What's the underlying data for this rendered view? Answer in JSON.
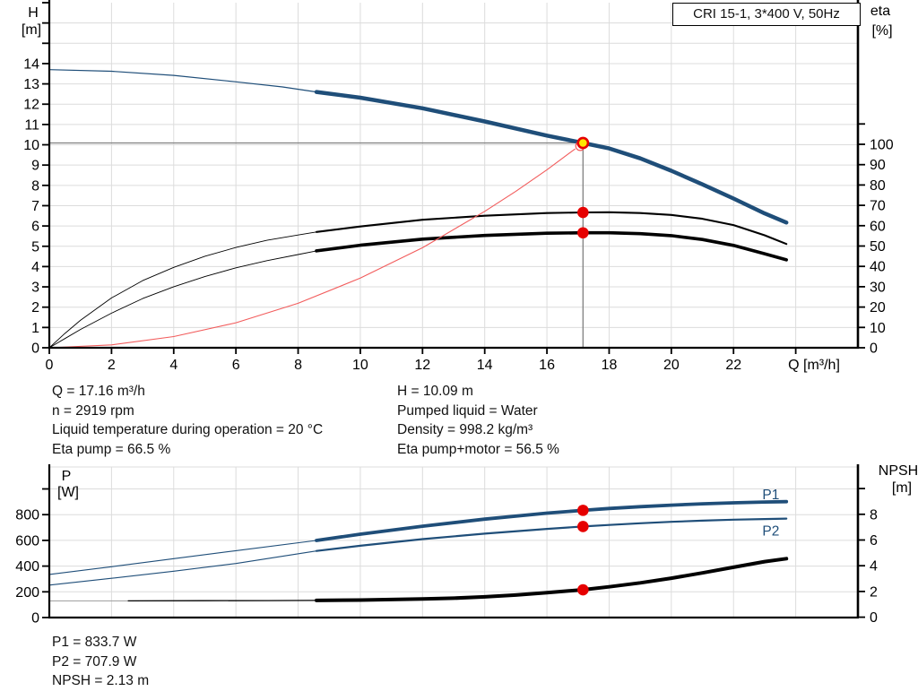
{
  "title_box": "CRI 15-1, 3*400 V, 50Hz",
  "colors": {
    "curve_blue": "#1f4e79",
    "curve_black": "#000000",
    "system_curve_red": "#f25c5c",
    "marker_red": "#e60000",
    "marker_yellow": "#ffe600",
    "grid": "#dcdcdc",
    "crosshair": "#808080",
    "npsh_gray_segment": "#a6a6a6",
    "axis": "#000000"
  },
  "info_left": [
    "Q = 17.16 m³/h",
    "n = 2919 rpm",
    "Liquid temperature during operation = 20 °C",
    "Eta pump = 66.5 %"
  ],
  "info_right": [
    "H = 10.09 m",
    "Pumped liquid = Water",
    "Density = 998.2 kg/m³",
    "Eta pump+motor = 56.5 %"
  ],
  "info_bottom": [
    "P1 = 833.7 W",
    "P2 = 707.9 W",
    "NPSH = 2.13 m"
  ],
  "chart_data": [
    {
      "id": "qh-eta-chart",
      "type": "line",
      "title": "CRI 15-1, 3*400 V, 50Hz",
      "x_axis": {
        "label": "Q [m³/h]",
        "min": 0,
        "max": 26,
        "tick_step": 2,
        "last_labeled_tick": 22
      },
      "y_left_axis": {
        "label": "H",
        "unit": "[m]",
        "min": 0,
        "max": 17,
        "tick_step": 1,
        "last_labeled_tick": 14
      },
      "y_right_axis": {
        "label": "eta",
        "unit": "[%]",
        "min": 0,
        "max": 110,
        "tick_step": 10,
        "last_labeled_tick": 100
      },
      "grid": true,
      "duty_point": {
        "q": 17.16,
        "h": 10.09,
        "eta_pump": 66.5,
        "eta_pump_motor": 56.5
      },
      "series": [
        {
          "name": "head-curve",
          "axis": "left",
          "segments": [
            {
              "color": "#1f4e79",
              "width": 1.2,
              "points": [
                [
                  0,
                  13.7
                ],
                [
                  2,
                  13.62
                ],
                [
                  4,
                  13.42
                ],
                [
                  6,
                  13.1
                ],
                [
                  7.5,
                  12.85
                ],
                [
                  8.59,
                  12.6
                ]
              ]
            },
            {
              "color": "#1f4e79",
              "width": 4.5,
              "points": [
                [
                  8.59,
                  12.6
                ],
                [
                  10,
                  12.32
                ],
                [
                  12,
                  11.8
                ],
                [
                  14,
                  11.15
                ],
                [
                  16,
                  10.45
                ],
                [
                  17.16,
                  10.09
                ],
                [
                  18,
                  9.82
                ],
                [
                  19,
                  9.33
                ],
                [
                  20,
                  8.72
                ],
                [
                  21,
                  8.05
                ],
                [
                  22,
                  7.35
                ],
                [
                  23,
                  6.62
                ],
                [
                  23.7,
                  6.17
                ]
              ]
            }
          ]
        },
        {
          "name": "eta-pump-curve",
          "axis": "right",
          "segments": [
            {
              "color": "#000000",
              "width": 0.9,
              "points": [
                [
                  0,
                  0
                ],
                [
                  0.5,
                  7
                ],
                [
                  1,
                  13.5
                ],
                [
                  2,
                  24.5
                ],
                [
                  3,
                  33
                ],
                [
                  4,
                  39.5
                ],
                [
                  5,
                  45
                ],
                [
                  6,
                  49.3
                ],
                [
                  7,
                  52.8
                ],
                [
                  8,
                  55.4
                ],
                [
                  8.59,
                  56.9
                ]
              ]
            },
            {
              "color": "#000000",
              "width": 2.1,
              "points": [
                [
                  8.59,
                  56.9
                ],
                [
                  10,
                  59.6
                ],
                [
                  12,
                  62.9
                ],
                [
                  14,
                  64.9
                ],
                [
                  16,
                  66.2
                ],
                [
                  17.16,
                  66.5
                ],
                [
                  18,
                  66.6
                ],
                [
                  19,
                  66.2
                ],
                [
                  20,
                  65.3
                ],
                [
                  21,
                  63.4
                ],
                [
                  22,
                  60.3
                ],
                [
                  23,
                  55.3
                ],
                [
                  23.7,
                  51
                ]
              ]
            }
          ]
        },
        {
          "name": "eta-pump-motor-curve",
          "axis": "right",
          "segments": [
            {
              "color": "#000000",
              "width": 0.9,
              "points": [
                [
                  0,
                  0
                ],
                [
                  0.5,
                  4.5
                ],
                [
                  1,
                  9
                ],
                [
                  2,
                  17
                ],
                [
                  3,
                  24.2
                ],
                [
                  4,
                  30
                ],
                [
                  5,
                  35
                ],
                [
                  6,
                  39.3
                ],
                [
                  7,
                  42.8
                ],
                [
                  8,
                  45.8
                ],
                [
                  8.59,
                  47.6
                ]
              ]
            },
            {
              "color": "#000000",
              "width": 3.6,
              "points": [
                [
                  8.59,
                  47.6
                ],
                [
                  10,
                  50.4
                ],
                [
                  12,
                  53.4
                ],
                [
                  14,
                  55.2
                ],
                [
                  16,
                  56.3
                ],
                [
                  17.16,
                  56.5
                ],
                [
                  18,
                  56.5
                ],
                [
                  19,
                  56.1
                ],
                [
                  20,
                  55.1
                ],
                [
                  21,
                  53.2
                ],
                [
                  22,
                  50.3
                ],
                [
                  23,
                  46.2
                ],
                [
                  23.7,
                  43.2
                ]
              ]
            }
          ]
        },
        {
          "name": "system-curve",
          "axis": "left",
          "segments": [
            {
              "color": "#f25c5c",
              "width": 1.1,
              "points": [
                [
                  0,
                  0
                ],
                [
                  2,
                  0.14
                ],
                [
                  4,
                  0.55
                ],
                [
                  6,
                  1.23
                ],
                [
                  8,
                  2.19
                ],
                [
                  10,
                  3.43
                ],
                [
                  12,
                  4.93
                ],
                [
                  14,
                  6.72
                ],
                [
                  15,
                  7.71
                ],
                [
                  16,
                  8.77
                ],
                [
                  16.9,
                  9.79
                ]
              ]
            }
          ]
        }
      ],
      "markers": [
        {
          "name": "requested-duty-ring",
          "style": "red-ring",
          "axis": "left",
          "q": 17.07,
          "value": 9.94
        },
        {
          "name": "duty-point",
          "style": "yellow-red-ring",
          "axis": "left",
          "q": 17.16,
          "value": 10.09
        },
        {
          "name": "eta-pump-point",
          "style": "red-dot",
          "axis": "right",
          "q": 17.16,
          "value": 66.5
        },
        {
          "name": "eta-pump-motor-point",
          "style": "red-dot",
          "axis": "right",
          "q": 17.16,
          "value": 56.5
        }
      ],
      "crosshair": {
        "q": 17.16,
        "h": 10.09
      }
    },
    {
      "id": "power-npsh-chart",
      "type": "line",
      "x_axis": {
        "label": "",
        "min": 0,
        "max": 26,
        "tick_step": 2,
        "last_labeled_tick": -1
      },
      "y_left_axis": {
        "label": "P",
        "unit": "[W]",
        "min": 0,
        "max": 1000,
        "tick_step": 200,
        "last_labeled_tick": 800
      },
      "y_right_axis": {
        "label": "NPSH",
        "unit": "[m]",
        "min": 0,
        "max": 10,
        "tick_step": 2,
        "last_labeled_tick": 8
      },
      "grid": true,
      "series": [
        {
          "name": "p1-curve",
          "axis": "left",
          "segments": [
            {
              "color": "#1f4e79",
              "width": 1.1,
              "points": [
                [
                  0,
                  335
                ],
                [
                  2,
                  395
                ],
                [
                  4,
                  458
                ],
                [
                  6,
                  520
                ],
                [
                  8.59,
                  599
                ]
              ]
            },
            {
              "color": "#1f4e79",
              "width": 3.8,
              "points": [
                [
                  8.59,
                  599
                ],
                [
                  10,
                  648
                ],
                [
                  12,
                  710
                ],
                [
                  14,
                  765
                ],
                [
                  16,
                  812
                ],
                [
                  17.16,
                  833.7
                ],
                [
                  18,
                  848
                ],
                [
                  19,
                  862
                ],
                [
                  20,
                  874
                ],
                [
                  21,
                  884
                ],
                [
                  22,
                  892
                ],
                [
                  23,
                  898
                ],
                [
                  23.7,
                  901
                ]
              ]
            }
          ]
        },
        {
          "name": "p2-curve",
          "axis": "left",
          "segments": [
            {
              "color": "#1f4e79",
              "width": 1.1,
              "points": [
                [
                  0,
                  252
                ],
                [
                  2,
                  305
                ],
                [
                  4,
                  360
                ],
                [
                  6,
                  420
                ],
                [
                  8.59,
                  518
                ]
              ]
            },
            {
              "color": "#1f4e79",
              "width": 2.2,
              "points": [
                [
                  8.59,
                  518
                ],
                [
                  10,
                  558
                ],
                [
                  12,
                  610
                ],
                [
                  14,
                  652
                ],
                [
                  16,
                  689
                ],
                [
                  17.16,
                  707.9
                ],
                [
                  18,
                  720
                ],
                [
                  19,
                  733
                ],
                [
                  20,
                  744
                ],
                [
                  21,
                  753
                ],
                [
                  22,
                  761
                ],
                [
                  23,
                  766
                ],
                [
                  23.7,
                  769
                ]
              ]
            }
          ]
        },
        {
          "name": "npsh-curve",
          "axis": "right",
          "segments": [
            {
              "color": "#a6a6a6",
              "width": 1.1,
              "points": [
                [
                  0,
                  1.27
                ],
                [
                  2.54,
                  1.27
                ]
              ]
            },
            {
              "color": "#000000",
              "width": 1.3,
              "points": [
                [
                  2.54,
                  1.27
                ],
                [
                  5,
                  1.28
                ],
                [
                  7,
                  1.29
                ],
                [
                  8.59,
                  1.3
                ]
              ]
            },
            {
              "color": "#000000",
              "width": 4,
              "points": [
                [
                  8.59,
                  1.3
                ],
                [
                  10,
                  1.33
                ],
                [
                  12,
                  1.42
                ],
                [
                  13,
                  1.48
                ],
                [
                  14,
                  1.58
                ],
                [
                  15,
                  1.72
                ],
                [
                  16,
                  1.9
                ],
                [
                  17.16,
                  2.13
                ],
                [
                  18,
                  2.36
                ],
                [
                  19,
                  2.67
                ],
                [
                  20,
                  3.03
                ],
                [
                  21,
                  3.44
                ],
                [
                  22,
                  3.88
                ],
                [
                  23,
                  4.32
                ],
                [
                  23.7,
                  4.55
                ]
              ]
            }
          ]
        }
      ],
      "series_labels": [
        {
          "text": "P1",
          "q": 23.2,
          "value": 955,
          "axis": "left",
          "color": "#1f4e79"
        },
        {
          "text": "P2",
          "q": 23.2,
          "value": 672,
          "axis": "left",
          "color": "#1f4e79"
        }
      ],
      "markers": [
        {
          "name": "p1-point",
          "style": "red-dot",
          "axis": "left",
          "q": 17.16,
          "value": 833.7
        },
        {
          "name": "p2-point",
          "style": "red-dot",
          "axis": "left",
          "q": 17.16,
          "value": 707.9
        },
        {
          "name": "npsh-point",
          "style": "red-dot",
          "axis": "right",
          "q": 17.16,
          "value": 2.13
        }
      ]
    }
  ]
}
